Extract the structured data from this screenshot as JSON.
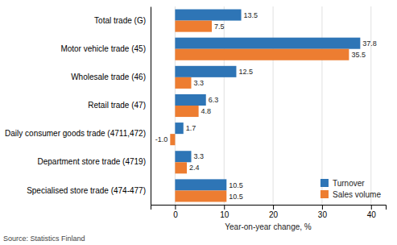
{
  "chart_data": {
    "type": "bar",
    "orientation": "horizontal",
    "categories": [
      "Total trade (G)",
      "Motor vehicle trade (45)",
      "Wholesale trade (46)",
      "Retail trade (47)",
      "Daily consumer goods trade (4711,472)",
      "Department store trade (4719)",
      "Specialised store trade (474-477)"
    ],
    "series": [
      {
        "name": "Turnover",
        "color": "#2e75b6",
        "values": [
          13.5,
          37.8,
          12.5,
          6.3,
          1.7,
          3.3,
          10.5
        ]
      },
      {
        "name": "Sales volume",
        "color": "#ed7d31",
        "values": [
          7.5,
          35.5,
          3.3,
          4.8,
          -1.0,
          2.4,
          10.5
        ],
        "value_labels": [
          "7.5",
          "35.5",
          "3.3",
          "4.8",
          "-1.0",
          "2.4",
          "10.5"
        ]
      }
    ],
    "xlabel": "Year-on-year change, %",
    "xlim": [
      -5,
      43
    ],
    "xticks": [
      0,
      10,
      20,
      30,
      40
    ],
    "grid": true,
    "legend": "lower right",
    "data_labels": true,
    "annotations": [
      "Source: Statistics Finland"
    ]
  }
}
